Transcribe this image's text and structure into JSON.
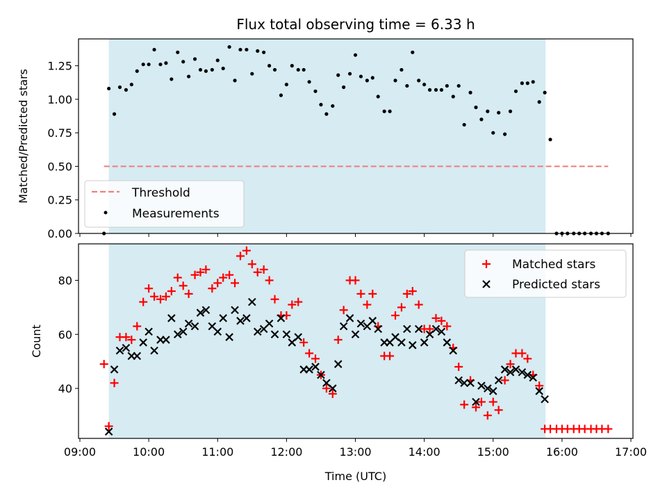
{
  "chart_data": [
    {
      "type": "scatter",
      "title": "Flux total observing time = 6.33 h",
      "xlabel": "",
      "ylabel": "Matched/Predicted stars",
      "ylim": [
        0,
        1.45
      ],
      "yticks": [
        0.0,
        0.25,
        0.5,
        0.75,
        1.0,
        1.25
      ],
      "ytick_labels": [
        "0.00",
        "0.25",
        "0.50",
        "0.75",
        "1.00",
        "1.25"
      ],
      "shaded_region": {
        "x_start": 9.42,
        "x_end": 15.76,
        "color": "#add8e6"
      },
      "legend": {
        "position": "lower-left"
      },
      "series": [
        {
          "name": "Threshold",
          "kind": "line",
          "style": "dashed",
          "color": "#f08080",
          "x": [
            9.35,
            16.67
          ],
          "y": [
            0.5,
            0.5
          ]
        },
        {
          "name": "Measurements",
          "kind": "points",
          "color": "#000000",
          "x": [
            9.35,
            9.42,
            9.5,
            9.58,
            9.67,
            9.75,
            9.83,
            9.92,
            10.0,
            10.08,
            10.17,
            10.25,
            10.33,
            10.42,
            10.5,
            10.58,
            10.67,
            10.75,
            10.83,
            10.92,
            11.0,
            11.08,
            11.17,
            11.25,
            11.33,
            11.42,
            11.5,
            11.58,
            11.67,
            11.75,
            11.83,
            11.92,
            12.0,
            12.08,
            12.17,
            12.25,
            12.33,
            12.42,
            12.5,
            12.58,
            12.67,
            12.75,
            12.83,
            12.92,
            13.0,
            13.08,
            13.17,
            13.25,
            13.33,
            13.42,
            13.5,
            13.58,
            13.67,
            13.75,
            13.83,
            13.92,
            14.0,
            14.08,
            14.17,
            14.25,
            14.33,
            14.42,
            14.5,
            14.58,
            14.67,
            14.75,
            14.83,
            14.92,
            15.0,
            15.08,
            15.17,
            15.25,
            15.33,
            15.42,
            15.5,
            15.58,
            15.67,
            15.75,
            15.83,
            15.92,
            16.0,
            16.08,
            16.17,
            16.25,
            16.33,
            16.42,
            16.5,
            16.58,
            16.67
          ],
          "y": [
            0.0,
            1.08,
            0.89,
            1.09,
            1.07,
            1.11,
            1.21,
            1.26,
            1.26,
            1.37,
            1.26,
            1.27,
            1.15,
            1.35,
            1.28,
            1.17,
            1.3,
            1.22,
            1.21,
            1.22,
            1.29,
            1.23,
            1.39,
            1.14,
            1.37,
            1.37,
            1.19,
            1.36,
            1.35,
            1.25,
            1.22,
            1.03,
            1.11,
            1.25,
            1.22,
            1.22,
            1.13,
            1.06,
            0.96,
            0.89,
            0.95,
            1.18,
            1.09,
            1.19,
            1.33,
            1.17,
            1.14,
            1.16,
            1.02,
            0.91,
            0.91,
            1.14,
            1.22,
            1.1,
            1.35,
            1.14,
            1.11,
            1.07,
            1.07,
            1.07,
            1.1,
            1.02,
            1.1,
            0.81,
            1.05,
            0.94,
            0.85,
            0.91,
            0.75,
            0.9,
            0.74,
            0.91,
            1.06,
            1.12,
            1.12,
            1.13,
            0.98,
            1.05,
            0.7,
            0.0,
            0.0,
            0.0,
            0.0,
            0.0,
            0.0,
            0.0,
            0.0,
            0.0,
            0.0
          ]
        }
      ]
    },
    {
      "type": "scatter",
      "title": "",
      "xlabel": "Time (UTC)",
      "ylabel": "Count",
      "xlim": [
        8.98,
        17.03
      ],
      "ylim": [
        21.5,
        93.5
      ],
      "xticks": [
        9,
        10,
        11,
        12,
        13,
        14,
        15,
        16,
        17
      ],
      "xtick_labels": [
        "09:00",
        "10:00",
        "11:00",
        "12:00",
        "13:00",
        "14:00",
        "15:00",
        "16:00",
        "17:00"
      ],
      "yticks": [
        40,
        60,
        80
      ],
      "ytick_labels": [
        "40",
        "60",
        "80"
      ],
      "shaded_region": {
        "x_start": 9.42,
        "x_end": 15.76,
        "color": "#add8e6"
      },
      "legend": {
        "position": "upper-right"
      },
      "series": [
        {
          "name": "Matched stars",
          "marker": "plus",
          "color": "#ff0000",
          "x": [
            9.35,
            9.42,
            9.5,
            9.58,
            9.67,
            9.75,
            9.83,
            9.92,
            10.0,
            10.08,
            10.17,
            10.25,
            10.33,
            10.42,
            10.5,
            10.58,
            10.67,
            10.75,
            10.83,
            10.92,
            11.0,
            11.08,
            11.17,
            11.25,
            11.33,
            11.42,
            11.5,
            11.58,
            11.67,
            11.75,
            11.83,
            11.92,
            12.0,
            12.08,
            12.17,
            12.25,
            12.33,
            12.42,
            12.5,
            12.58,
            12.67,
            12.75,
            12.83,
            12.92,
            13.0,
            13.08,
            13.17,
            13.25,
            13.33,
            13.42,
            13.5,
            13.58,
            13.67,
            13.75,
            13.83,
            13.92,
            14.0,
            14.08,
            14.17,
            14.25,
            14.33,
            14.42,
            14.5,
            14.58,
            14.67,
            14.75,
            14.83,
            14.92,
            15.0,
            15.08,
            15.17,
            15.25,
            15.33,
            15.42,
            15.5,
            15.58,
            15.67,
            15.75,
            15.83,
            15.92,
            16.0,
            16.08,
            16.17,
            16.25,
            16.33,
            16.42,
            16.5,
            16.58,
            16.67
          ],
          "y": [
            49,
            26,
            42,
            59,
            59,
            58,
            63,
            72,
            77,
            74,
            73,
            74,
            76,
            81,
            78,
            75,
            82,
            83,
            84,
            77,
            79,
            81,
            82,
            79,
            89,
            91,
            86,
            83,
            84,
            80,
            73,
            67,
            67,
            71,
            72,
            57,
            53,
            51,
            45,
            40,
            38,
            58,
            69,
            80,
            80,
            75,
            71,
            75,
            63,
            52,
            52,
            67,
            70,
            75,
            76,
            71,
            62,
            62,
            66,
            65,
            63,
            55,
            48,
            34,
            43,
            33,
            35,
            30,
            35,
            32,
            43,
            49,
            53,
            53,
            51,
            45,
            41,
            25,
            25,
            25,
            25,
            25,
            25,
            25,
            25,
            25,
            25,
            25,
            25
          ]
        },
        {
          "name": "Predicted stars",
          "marker": "x",
          "color": "#000000",
          "x": [
            9.42,
            9.5,
            9.58,
            9.67,
            9.75,
            9.83,
            9.92,
            10.0,
            10.08,
            10.17,
            10.25,
            10.33,
            10.42,
            10.5,
            10.58,
            10.67,
            10.75,
            10.83,
            10.92,
            11.0,
            11.08,
            11.17,
            11.25,
            11.33,
            11.42,
            11.5,
            11.58,
            11.67,
            11.75,
            11.83,
            11.92,
            12.0,
            12.08,
            12.17,
            12.25,
            12.33,
            12.42,
            12.5,
            12.58,
            12.67,
            12.75,
            12.83,
            12.92,
            13.0,
            13.08,
            13.17,
            13.25,
            13.33,
            13.42,
            13.5,
            13.58,
            13.67,
            13.75,
            13.83,
            13.92,
            14.0,
            14.08,
            14.17,
            14.25,
            14.33,
            14.42,
            14.5,
            14.58,
            14.67,
            14.75,
            14.83,
            14.92,
            15.0,
            15.08,
            15.17,
            15.25,
            15.33,
            15.42,
            15.5,
            15.58,
            15.67,
            15.75
          ],
          "y": [
            24,
            47,
            54,
            55,
            52,
            52,
            57,
            61,
            54,
            58,
            58,
            66,
            60,
            61,
            64,
            63,
            68,
            69,
            63,
            61,
            66,
            59,
            69,
            65,
            66,
            72,
            61,
            62,
            64,
            60,
            66,
            60,
            57,
            59,
            47,
            47,
            48,
            45,
            42,
            40,
            49,
            63,
            66,
            60,
            64,
            63,
            65,
            62,
            57,
            57,
            59,
            57,
            62,
            56,
            62,
            57,
            60,
            62,
            61,
            57,
            54,
            43,
            42,
            42,
            35,
            41,
            40,
            39,
            43,
            47,
            46,
            47,
            46,
            45,
            44,
            39,
            36
          ]
        }
      ]
    }
  ]
}
